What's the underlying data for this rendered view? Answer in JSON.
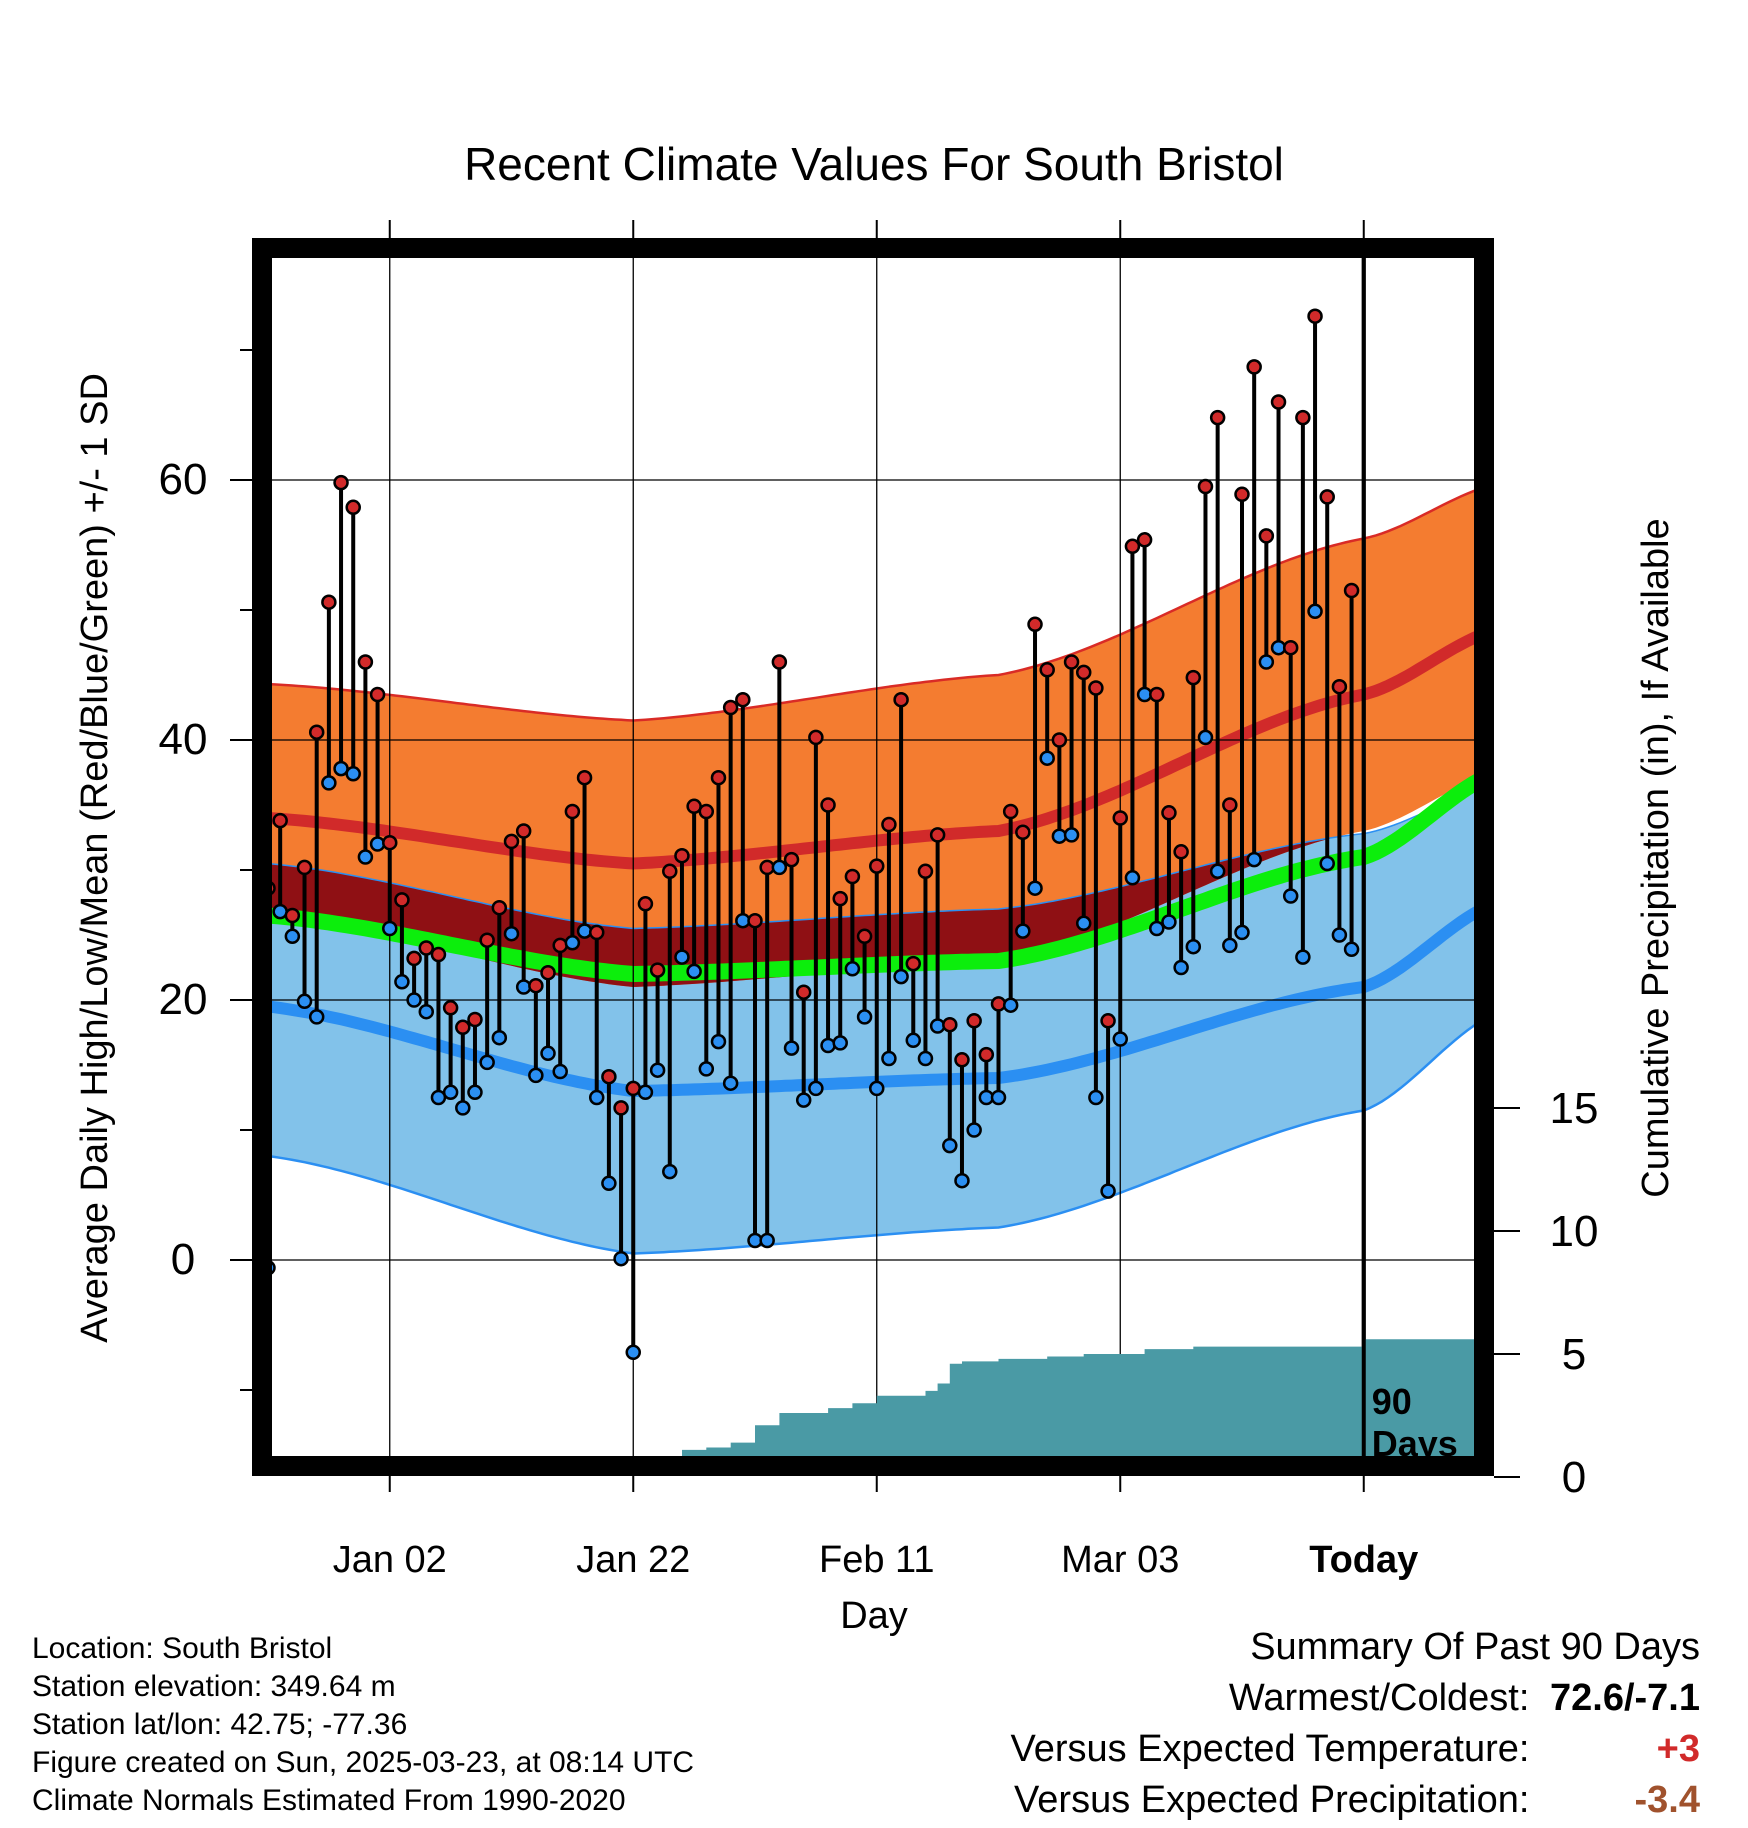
{
  "chart_data": {
    "type": "line",
    "title": "Recent Climate Values For South Bristol",
    "xlabel": "Day",
    "ylabel": "Average Daily High/Low/Mean (Red/Blue/Green) +/- 1 SD",
    "ylabel_right": "Cumulative Precipitation (in), If Available",
    "xtick_labels": [
      "Jan 02",
      "Jan 22",
      "Feb 11",
      "Mar 03",
      "Today"
    ],
    "yticks_left": [
      "0",
      "20",
      "40",
      "60"
    ],
    "yticks_right": [
      "0",
      "5",
      "10",
      "15"
    ],
    "today_label": "90\nDays",
    "grid": true,
    "normals_day_index": [
      0,
      30,
      60,
      90,
      101
    ],
    "normal_high_mean": [
      34,
      30.5,
      33,
      43.5,
      48.5
    ],
    "normal_high_sd_upper": [
      44.3,
      41.5,
      45,
      55.5,
      59.7
    ],
    "normal_high_sd_lower": [
      26.5,
      21,
      23,
      33,
      37.5
    ],
    "normal_mean": [
      26.5,
      22,
      23,
      31,
      37.5
    ],
    "normal_low_mean": [
      19.5,
      13,
      14,
      21,
      27.5
    ],
    "normal_low_sd_upper": [
      30.5,
      25.5,
      27,
      32.8,
      36.5
    ],
    "normal_low_sd_lower": [
      8,
      0.5,
      2.5,
      11.5,
      19
    ],
    "daily_high": [
      28.6,
      33.8,
      26.5,
      30.2,
      40.6,
      50.6,
      59.8,
      57.9,
      46.0,
      43.5,
      32.1,
      27.7,
      23.2,
      24.0,
      23.5,
      19.4,
      17.9,
      18.5,
      24.6,
      27.1,
      32.2,
      33.0,
      21.1,
      22.1,
      24.2,
      34.5,
      37.1,
      25.2,
      14.1,
      11.7,
      13.2,
      27.4,
      22.3,
      29.9,
      31.1,
      34.9,
      34.5,
      37.1,
      42.5,
      43.1,
      26.1,
      30.2,
      46.0,
      30.8,
      20.6,
      40.2,
      35.0,
      27.8,
      29.5,
      24.9,
      30.3,
      33.5,
      43.1,
      22.8,
      29.9,
      32.7,
      18.1,
      15.4,
      18.4,
      15.8,
      19.7,
      34.5,
      32.9,
      48.9,
      45.4,
      40.0,
      46.0,
      45.2,
      44.0,
      18.4,
      34.0,
      54.9,
      55.4,
      43.5,
      34.4,
      31.4,
      44.8,
      59.5,
      64.8,
      35.0,
      58.9,
      68.7,
      55.7,
      66.0,
      47.1,
      64.8,
      72.6,
      58.7,
      44.1,
      51.5
    ],
    "daily_low": [
      -0.6,
      26.8,
      24.9,
      19.9,
      18.7,
      36.7,
      37.8,
      37.4,
      31.0,
      32.0,
      25.5,
      21.4,
      20.0,
      19.1,
      12.5,
      12.9,
      11.7,
      12.9,
      15.2,
      17.1,
      25.1,
      21.0,
      14.2,
      15.9,
      14.5,
      24.4,
      25.3,
      12.5,
      5.9,
      0.1,
      -7.1,
      12.9,
      14.6,
      6.8,
      23.3,
      22.2,
      14.7,
      16.8,
      13.6,
      26.1,
      1.5,
      1.5,
      30.2,
      16.3,
      12.3,
      13.2,
      16.5,
      16.7,
      22.4,
      18.7,
      13.2,
      15.5,
      21.8,
      16.9,
      15.5,
      18.0,
      8.8,
      6.1,
      10.0,
      12.5,
      12.5,
      19.6,
      25.3,
      28.6,
      38.6,
      32.6,
      32.7,
      25.9,
      12.5,
      5.3,
      17.0,
      29.4,
      43.5,
      25.5,
      26.0,
      22.5,
      24.1,
      40.2,
      29.9,
      24.2,
      25.2,
      30.8,
      46.0,
      47.1,
      28.0,
      23.3,
      49.9,
      30.5,
      25.0,
      23.9
    ],
    "cumulative_precip_days": [
      0,
      10,
      15,
      18,
      20,
      25,
      30,
      34,
      36,
      38,
      40,
      42,
      46,
      48,
      50,
      54,
      55,
      56,
      57,
      60,
      64,
      67,
      72,
      76,
      86,
      90,
      101
    ],
    "cumulative_precip": [
      0,
      0,
      0.2,
      0.3,
      0.4,
      0.6,
      0.8,
      1.1,
      1.2,
      1.4,
      2.1,
      2.6,
      2.8,
      3.0,
      3.3,
      3.5,
      3.8,
      4.6,
      4.7,
      4.8,
      4.9,
      5.0,
      5.2,
      5.3,
      5.3,
      5.6,
      5.6
    ]
  },
  "footer": {
    "location": "Location: South Bristol",
    "elevation": "Station elevation: 349.64 m",
    "latlon": "Station lat/lon: 42.75; -77.36",
    "created": "Figure created on Sun, 2025-03-23, at 08:14 UTC",
    "normals": "Climate Normals Estimated From 1990-2020"
  },
  "summary": {
    "heading": "Summary Of Past 90 Days",
    "warmest_coldest_label": "Warmest/Coldest:",
    "warmest_coldest_value": "72.6/-7.1",
    "temp_label": "Versus Expected Temperature:",
    "temp_value": "+3",
    "precip_label": "Versus Expected Precipitation:",
    "precip_value": "-3.4"
  },
  "colors": {
    "high_band": "#f47c30",
    "high_band_edge": "#d92b26",
    "high_mean": "#d12a2a",
    "overlap_band": "#8f1014",
    "low_band": "#82c2ea",
    "low_band_edge": "#2b8ff2",
    "low_mean": "#2b8ff2",
    "mean_line": "#0cee0c",
    "precip": "#4a9aa5",
    "high_dot": "#d12a2a",
    "low_dot": "#2b8ff2",
    "temp_delta": "#d12a2a",
    "precip_delta": "#a0522d"
  }
}
